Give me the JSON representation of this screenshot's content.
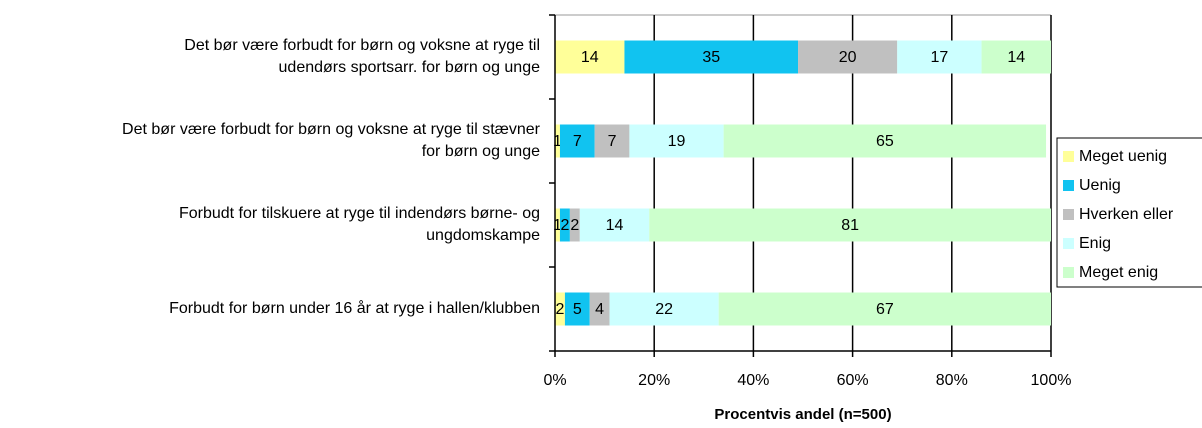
{
  "chart_data": {
    "type": "stacked_bar_horizontal",
    "categories": [
      [
        "Det bør være forbudt for børn og voksne at ryge til",
        "udendørs sportsarr. for børn og unge"
      ],
      [
        "Det bør være forbudt for børn og voksne at ryge til stævner",
        "for børn og unge"
      ],
      [
        "Forbudt for tilskuere at ryge til indendørs børne- og",
        "ungdomskampe"
      ],
      [
        "Forbudt for børn under 16 år at ryge i hallen/klubben"
      ]
    ],
    "series": [
      {
        "name": "Meget uenig",
        "color": "#ffff99",
        "values": [
          14,
          1,
          1,
          2
        ]
      },
      {
        "name": "Uenig",
        "color": "#11c3f0",
        "values": [
          35,
          7,
          2,
          5
        ]
      },
      {
        "name": "Hverken eller",
        "color": "#c0c0c0",
        "values": [
          20,
          7,
          2,
          4
        ]
      },
      {
        "name": "Enig",
        "color": "#ccffff",
        "values": [
          17,
          19,
          14,
          22
        ]
      },
      {
        "name": "Meget enig",
        "color": "#ccffcc",
        "values": [
          14,
          65,
          81,
          67
        ]
      }
    ],
    "xlim": [
      0,
      100
    ],
    "xticks": [
      {
        "value": 0,
        "label": "0%"
      },
      {
        "value": 20,
        "label": "20%"
      },
      {
        "value": 40,
        "label": "40%"
      },
      {
        "value": 60,
        "label": "60%"
      },
      {
        "value": 80,
        "label": "80%"
      },
      {
        "value": 100,
        "label": "100%"
      }
    ],
    "x_label": "Procentvis andel (n=500)",
    "grid": true,
    "legend": "right"
  }
}
